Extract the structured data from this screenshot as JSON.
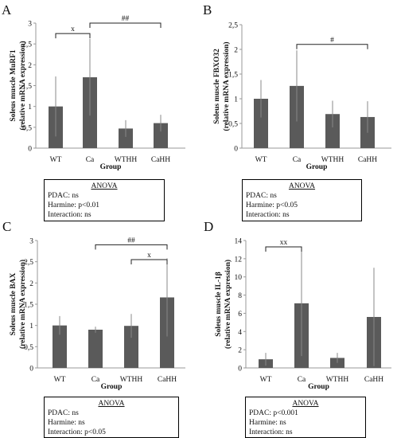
{
  "chart_data": [
    {
      "type": "bar",
      "panel_letter": "A",
      "categories": [
        "WT",
        "Ca",
        "WTHH",
        "CaHH"
      ],
      "values": [
        1.0,
        1.7,
        0.47,
        0.6
      ],
      "errors": [
        0.72,
        0.92,
        0.2,
        0.2
      ],
      "ylim": [
        0,
        3
      ],
      "yticks": [
        "0",
        "0,5",
        "1",
        "1,5",
        "2",
        "2,5",
        "3"
      ],
      "ylabel_lines": [
        "Soleus muscle MuRF1",
        "(relative mRNA expression)"
      ],
      "xlabel": "Group",
      "significance": [
        {
          "from": 0,
          "to": 1,
          "label": "x",
          "y": 2.75
        },
        {
          "from": 1,
          "to": 3,
          "label": "##",
          "y": 3.0
        }
      ],
      "anova": {
        "title": "ANOVA",
        "lines": [
          "PDAC: ns",
          "Harmine: p<0.01",
          "Interaction: ns"
        ]
      }
    },
    {
      "type": "bar",
      "panel_letter": "B",
      "categories": [
        "WT",
        "Ca",
        "WTHH",
        "CaHH"
      ],
      "values": [
        1.0,
        1.26,
        0.69,
        0.63
      ],
      "errors": [
        0.38,
        0.72,
        0.27,
        0.32
      ],
      "ylim": [
        0,
        2.5
      ],
      "yticks": [
        "0",
        "0,5",
        "1",
        "1,5",
        "2",
        "2,5"
      ],
      "ylabel_lines": [
        "Soleus muscle FBXO32",
        "(relative mRNA expression)"
      ],
      "xlabel": "Group",
      "significance": [
        {
          "from": 1,
          "to": 3,
          "label": "#",
          "y": 2.1
        }
      ],
      "anova": {
        "title": "ANOVA",
        "lines": [
          "PDAC: ns",
          "Harmine: p<0.05",
          "Interaction: ns"
        ]
      }
    },
    {
      "type": "bar",
      "panel_letter": "C",
      "categories": [
        "WT",
        "Ca",
        "WTHH",
        "CaHH"
      ],
      "values": [
        1.0,
        0.9,
        0.99,
        1.66
      ],
      "errors": [
        0.22,
        0.07,
        0.28,
        0.92
      ],
      "ylim": [
        0,
        3
      ],
      "yticks": [
        "0",
        "0,5",
        "1",
        "1,5",
        "2",
        "2,5",
        "3"
      ],
      "ylabel_lines": [
        "Soleus muscle BAX",
        "(relative mRNA expression)"
      ],
      "xlabel": "Group",
      "significance": [
        {
          "from": 1,
          "to": 3,
          "label": "##",
          "y": 2.9
        },
        {
          "from": 2,
          "to": 3,
          "label": "x",
          "y": 2.55
        }
      ],
      "anova": {
        "title": "ANOVA",
        "lines": [
          "PDAC: ns",
          "Harmine: ns",
          "Interaction: p<0.05"
        ]
      }
    },
    {
      "type": "bar",
      "panel_letter": "D",
      "categories": [
        "WT",
        "Ca",
        "WTHH",
        "CaHH"
      ],
      "values": [
        0.95,
        7.1,
        1.1,
        5.6
      ],
      "errors": [
        0.7,
        5.8,
        0.55,
        5.4
      ],
      "ylim": [
        0,
        14
      ],
      "yticks": [
        "0",
        "2",
        "4",
        "6",
        "8",
        "10",
        "12",
        "14"
      ],
      "ylabel_lines": [
        "Soleus muscle IL-1β",
        "(relative mRNA expression)"
      ],
      "xlabel": "Group",
      "significance": [
        {
          "from": 0,
          "to": 1,
          "label": "xx",
          "y": 13.3
        }
      ],
      "anova": {
        "title": "ANOVA",
        "lines": [
          "PDAC: p<0.001",
          "Harmine: ns",
          "Interaction: ns"
        ]
      }
    }
  ],
  "colors": {
    "bar": "#5a5a5a",
    "axis": "#999999",
    "error": "#888888",
    "bracket": "#222222"
  }
}
